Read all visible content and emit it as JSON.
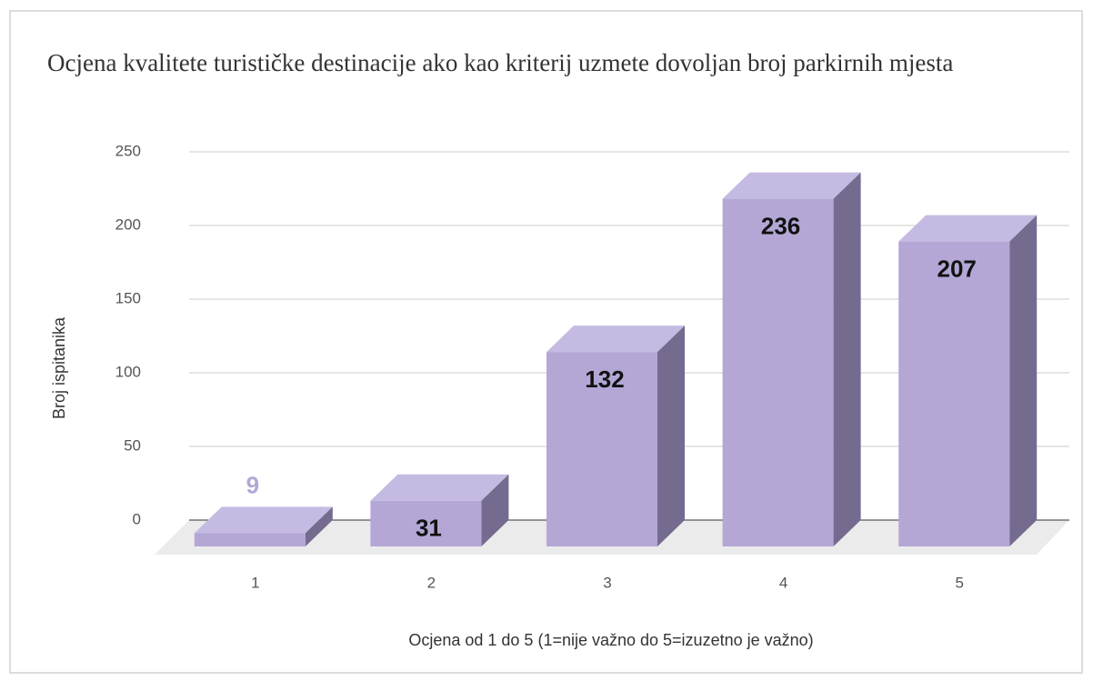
{
  "chart_data": {
    "type": "bar3d",
    "title": "Ocjena kvalitete turističke destinacije ako kao kriterij uzmete dovoljan broj parkirnih mjesta",
    "x_label": "Ocjena od 1 do 5 (1=nije važno do 5=izuzetno je važno)",
    "y_label": "Broj ispitanika",
    "categories": [
      "1",
      "2",
      "3",
      "4",
      "5"
    ],
    "values": [
      9,
      31,
      132,
      236,
      207
    ],
    "color": "#b4a7d6",
    "ylim": [
      0,
      250
    ],
    "yticks": [
      0,
      50,
      100,
      150,
      200,
      250
    ],
    "grid": true
  }
}
